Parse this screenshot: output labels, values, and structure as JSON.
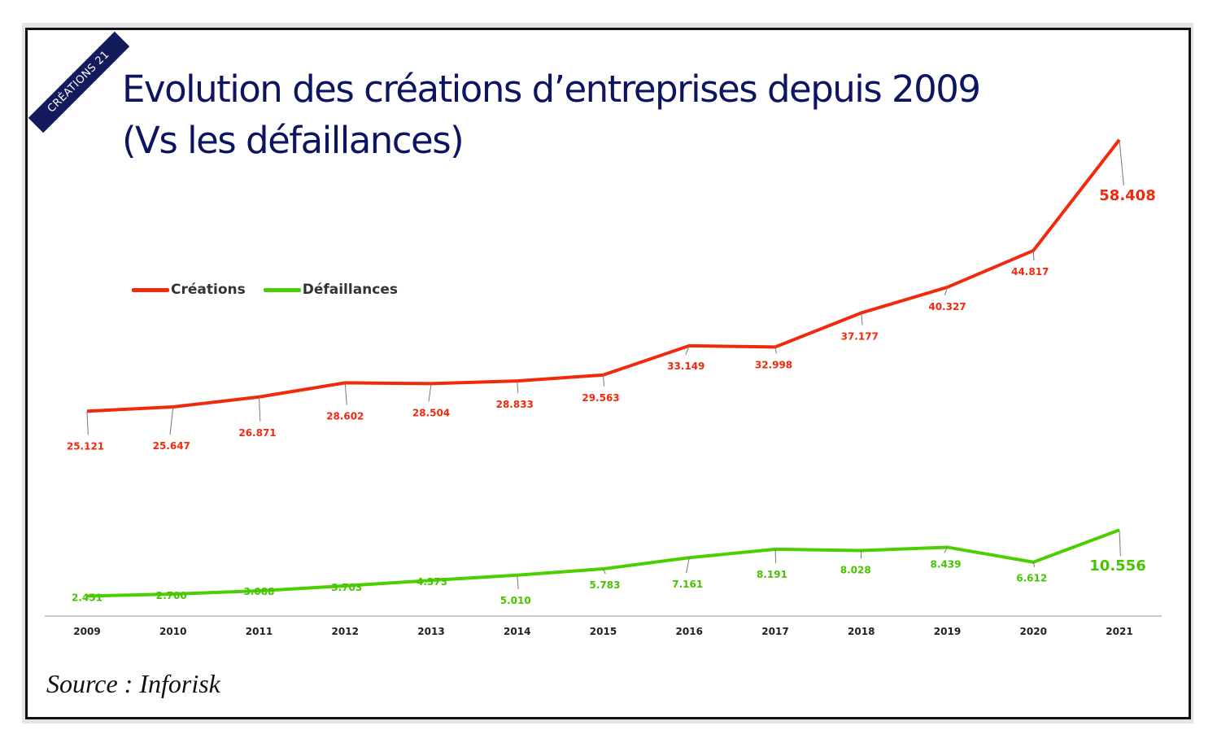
{
  "badge": "CRÉATIONS 21",
  "title_line1": "Evolution des créations d’entreprises depuis 2009",
  "title_line2": "(Vs les défaillances)",
  "source": "Source : Inforisk",
  "chart_data": {
    "type": "line",
    "title": "Evolution des créations d’entreprises depuis 2009 (Vs les défaillances)",
    "categories": [
      "2009",
      "2010",
      "2011",
      "2012",
      "2013",
      "2014",
      "2015",
      "2016",
      "2017",
      "2018",
      "2019",
      "2020",
      "2021"
    ],
    "series": [
      {
        "name": "Créations",
        "color": "#f22a0c",
        "values": [
          25.121,
          25.647,
          26.871,
          28.602,
          28.504,
          28.833,
          29.563,
          33.149,
          32.998,
          37.177,
          40.327,
          44.817,
          58.408
        ],
        "labels": [
          "25.121",
          "25.647",
          "26.871",
          "28.602",
          "28.504",
          "28.833",
          "29.563",
          "33.149",
          "32.998",
          "37.177",
          "40.327",
          "44.817",
          "58.408"
        ]
      },
      {
        "name": "Défaillances",
        "color": "#4ccf00",
        "values": [
          2.451,
          2.7,
          3.088,
          3.703,
          4.373,
          5.01,
          5.783,
          7.161,
          8.191,
          8.028,
          8.439,
          6.612,
          10.556
        ],
        "labels": [
          "2.451",
          "2.700",
          "3.088",
          "3.703",
          "4.373",
          "5.010",
          "5.783",
          "7.161",
          "8.191",
          "8.028",
          "8.439",
          "6.612",
          "10.556"
        ]
      }
    ],
    "xlabel": "",
    "ylabel": "",
    "ylim": [
      0,
      60
    ],
    "grid": false,
    "legend": "top-left"
  }
}
